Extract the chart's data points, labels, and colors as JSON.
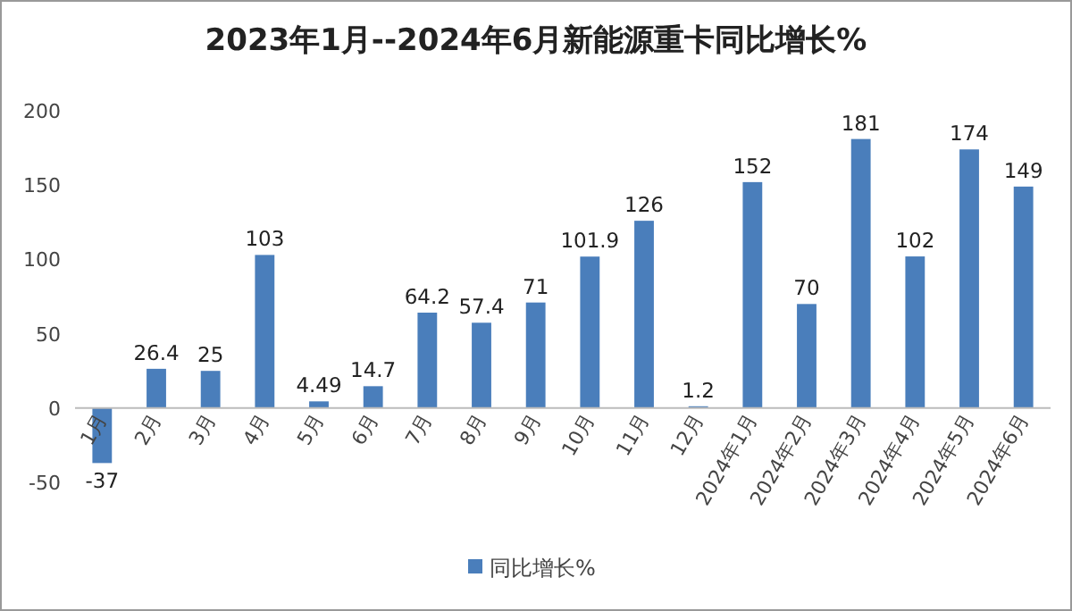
{
  "chart_data": {
    "type": "bar",
    "title": "2023年1月--2024年6月新能源重卡同比增长%",
    "categories": [
      "1月",
      "2月",
      "3月",
      "4月",
      "5月",
      "6月",
      "7月",
      "8月",
      "9月",
      "10月",
      "11月",
      "12月",
      "2024年1月",
      "2024年2月",
      "2024年3月",
      "2024年4月",
      "2024年5月",
      "2024年6月"
    ],
    "series": [
      {
        "name": "同比增长%",
        "color": "#4a7ebb",
        "values": [
          -37,
          26.4,
          25,
          103,
          4.49,
          14.7,
          64.2,
          57.4,
          71,
          101.9,
          126,
          1.2,
          152,
          70,
          181,
          102,
          174,
          149
        ]
      }
    ],
    "ylim": [
      -50,
      200
    ],
    "yticks": [
      -50,
      0,
      50,
      100,
      150,
      200
    ],
    "data_labels": true,
    "legend": "bottom"
  }
}
